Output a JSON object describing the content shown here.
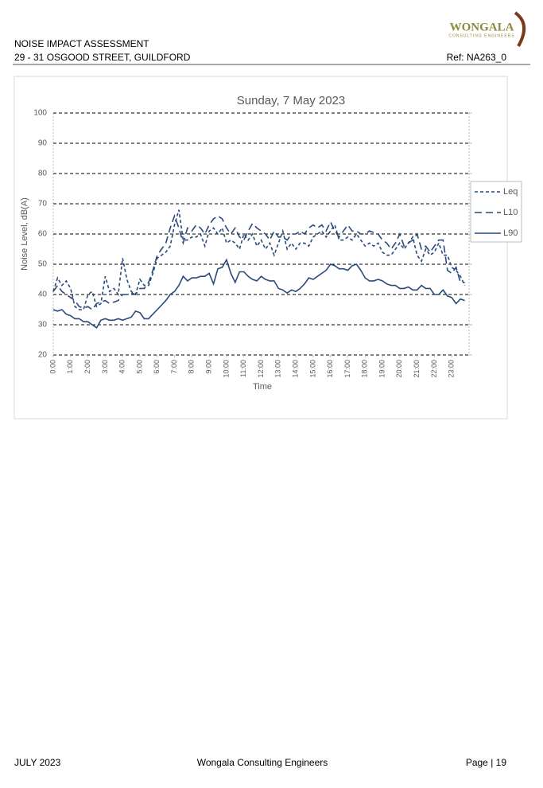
{
  "header": {
    "title": "NOISE IMPACT ASSESSMENT",
    "address": "29 - 31 OSGOOD STREET, GUILDFORD",
    "ref": "Ref: NA263_0",
    "logo": "WONGALA",
    "logo_subtitle": "CONSULTING ENGINEERS"
  },
  "chart_data": {
    "type": "line",
    "title": "Sunday, 7 May 2023",
    "x_label": "Time",
    "y_label": "Noise Level, dB(A)",
    "x": [
      0,
      0.25,
      0.5,
      0.75,
      1,
      1.25,
      1.5,
      1.75,
      2,
      2.25,
      2.5,
      2.75,
      3,
      3.25,
      3.5,
      3.75,
      4,
      4.25,
      4.5,
      4.75,
      5,
      5.25,
      5.5,
      5.75,
      6,
      6.25,
      6.5,
      6.75,
      7,
      7.25,
      7.5,
      7.75,
      8,
      8.25,
      8.5,
      8.75,
      9,
      9.25,
      9.5,
      9.75,
      10,
      10.25,
      10.5,
      10.75,
      11,
      11.25,
      11.5,
      11.75,
      12,
      12.25,
      12.5,
      12.75,
      13,
      13.25,
      13.5,
      13.75,
      14,
      14.25,
      14.5,
      14.75,
      15,
      15.25,
      15.5,
      15.75,
      16,
      16.25,
      16.5,
      16.75,
      17,
      17.25,
      17.5,
      17.75,
      18,
      18.25,
      18.5,
      18.75,
      19,
      19.25,
      19.5,
      19.75,
      20,
      20.25,
      20.5,
      20.75,
      21,
      21.25,
      21.5,
      21.75,
      22,
      22.25,
      22.5,
      22.75,
      23,
      23.25,
      23.5,
      23.75
    ],
    "xlim": [
      0,
      24
    ],
    "xticks": [
      {
        "value": 0,
        "label": "0:00"
      },
      {
        "value": 1,
        "label": "1:00"
      },
      {
        "value": 2,
        "label": "2:00"
      },
      {
        "value": 3,
        "label": "3:00"
      },
      {
        "value": 4,
        "label": "4:00"
      },
      {
        "value": 5,
        "label": "5:00"
      },
      {
        "value": 6,
        "label": "6:00"
      },
      {
        "value": 7,
        "label": "7:00"
      },
      {
        "value": 8,
        "label": "8:00"
      },
      {
        "value": 9,
        "label": "9:00"
      },
      {
        "value": 10,
        "label": "10:00"
      },
      {
        "value": 11,
        "label": "11:00"
      },
      {
        "value": 12,
        "label": "12:00"
      },
      {
        "value": 13,
        "label": "13:00"
      },
      {
        "value": 14,
        "label": "14:00"
      },
      {
        "value": 15,
        "label": "15:00"
      },
      {
        "value": 16,
        "label": "16:00"
      },
      {
        "value": 17,
        "label": "17:00"
      },
      {
        "value": 18,
        "label": "18:00"
      },
      {
        "value": 19,
        "label": "19:00"
      },
      {
        "value": 20,
        "label": "20:00"
      },
      {
        "value": 21,
        "label": "21:00"
      },
      {
        "value": 22,
        "label": "22:00"
      },
      {
        "value": 23,
        "label": "23:00"
      }
    ],
    "ylim": [
      20,
      100
    ],
    "yticks": [
      20,
      30,
      40,
      50,
      60,
      70,
      80,
      90,
      100
    ],
    "grid": true,
    "legend": "right",
    "series": [
      {
        "name": "Leq",
        "color": "#2b4a7c",
        "values": [
          41,
          45.5,
          43,
          44.5,
          42,
          36,
          35,
          35,
          40,
          41,
          36,
          37,
          46,
          41,
          42,
          40,
          52,
          45,
          41,
          40,
          45,
          43,
          43,
          47,
          52,
          53,
          54,
          56,
          63,
          68,
          58,
          58,
          59,
          59,
          60,
          56,
          61,
          62,
          60,
          62,
          57,
          58,
          57,
          55,
          60,
          58,
          60,
          56,
          58,
          55,
          57,
          53,
          57,
          61,
          55,
          57,
          55,
          57,
          57,
          56,
          59,
          60,
          61,
          59,
          61,
          63,
          58,
          58,
          59,
          58,
          60,
          58,
          56,
          57,
          56,
          57,
          54,
          53,
          53,
          55,
          57,
          55,
          57,
          59,
          53,
          51,
          55,
          53,
          54,
          57,
          53,
          53,
          49,
          48,
          46,
          43
        ]
      },
      {
        "name": "L10",
        "color": "#2b4a7c",
        "values": [
          41,
          43,
          41,
          40,
          39,
          38,
          36,
          35.5,
          36,
          35,
          37,
          37.5,
          38,
          37,
          37.5,
          38,
          40,
          40,
          40.5,
          40,
          42,
          42,
          44,
          48,
          53,
          55,
          57,
          62,
          66,
          62,
          57,
          62,
          61,
          63,
          62,
          60,
          63,
          65,
          66,
          65,
          62,
          60,
          62,
          59,
          58,
          61,
          63.5,
          62,
          61,
          60,
          58,
          61,
          59,
          59,
          58,
          60,
          60,
          61,
          60,
          62,
          63,
          62,
          63,
          61,
          64,
          61,
          59,
          61,
          63,
          61,
          61,
          60,
          60,
          61,
          60.5,
          60,
          58,
          57,
          55,
          57,
          60,
          56,
          57,
          58,
          60,
          55,
          56,
          54,
          56,
          58,
          58,
          48,
          47,
          49,
          44,
          44
        ]
      },
      {
        "name": "L90",
        "color": "#2b4a7c",
        "values": [
          35,
          34.5,
          35,
          33.5,
          33,
          32,
          32,
          31,
          31,
          30,
          29,
          31.5,
          32,
          31.5,
          31.5,
          32,
          31.5,
          32,
          32.5,
          34.5,
          34,
          32,
          32,
          33.5,
          35,
          36.5,
          38,
          40,
          41,
          43,
          46,
          44.5,
          45.5,
          45.5,
          46,
          46,
          47,
          43.5,
          48.5,
          49,
          51.5,
          47,
          44,
          47.5,
          47.5,
          46,
          45,
          44.5,
          46,
          45,
          44.5,
          44.5,
          42,
          41.5,
          40.5,
          41.5,
          41,
          42,
          43.5,
          45.5,
          45,
          46,
          47,
          48,
          50,
          49.5,
          48.5,
          48.5,
          48,
          49.5,
          50,
          48,
          45.5,
          44.5,
          44.5,
          45,
          44.5,
          43.5,
          43,
          43,
          42,
          42,
          42.5,
          41.5,
          41.5,
          43,
          42,
          42,
          40,
          40,
          41.5,
          39.5,
          39,
          37,
          38.5,
          38
        ]
      }
    ]
  },
  "footer": {
    "date": "JULY 2023",
    "company": "Wongala Consulting Engineers",
    "page": "Page | 19"
  }
}
